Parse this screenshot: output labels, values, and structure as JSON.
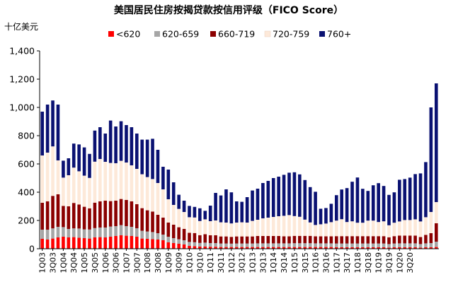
{
  "chart_data": {
    "type": "bar",
    "stacked": true,
    "title": "美国居民住房按揭贷款按信用评级（FICO Score）",
    "ylabel": "十亿美元",
    "ylim": [
      0,
      1400
    ],
    "yticks": [
      0,
      200,
      400,
      600,
      800,
      1000,
      1200,
      1400
    ],
    "ytick_labels": [
      "0",
      "200",
      "400",
      "600",
      "800",
      "1,000",
      "1,200",
      "1,400"
    ],
    "x_tick_labels": [
      "1Q03",
      "3Q03",
      "1Q04",
      "3Q04",
      "1Q05",
      "3Q05",
      "1Q06",
      "3Q06",
      "1Q07",
      "3Q07",
      "1Q08",
      "3Q08",
      "1Q09",
      "3Q09",
      "1Q10",
      "3Q10",
      "1Q11",
      "3Q11",
      "1Q12",
      "3Q12",
      "1Q13",
      "3Q13",
      "1Q14",
      "3Q14",
      "1Q15",
      "3Q15",
      "1Q16",
      "3Q16",
      "1Q17",
      "3Q17",
      "1Q18",
      "3Q18",
      "1Q19",
      "3Q19",
      "1Q20",
      "3Q20"
    ],
    "legend_position": "top",
    "grid": false,
    "series": [
      {
        "name": "<620",
        "color": "#ff0000",
        "values": [
          70,
          65,
          72,
          80,
          85,
          80,
          82,
          78,
          75,
          72,
          80,
          82,
          80,
          85,
          90,
          95,
          92,
          90,
          85,
          72,
          70,
          68,
          65,
          60,
          45,
          40,
          35,
          30,
          20,
          18,
          15,
          15,
          14,
          14,
          12,
          12,
          12,
          12,
          12,
          12,
          12,
          12,
          12,
          12,
          12,
          12,
          12,
          12,
          12,
          12,
          12,
          12,
          12,
          12,
          12,
          12,
          10,
          10,
          10,
          10,
          10,
          10,
          10,
          10,
          10,
          10,
          8,
          10,
          10,
          10,
          10,
          10,
          8,
          10,
          10,
          12
        ]
      },
      {
        "name": "620-659",
        "color": "#a6a6a6",
        "values": [
          65,
          70,
          72,
          75,
          68,
          60,
          62,
          65,
          62,
          64,
          66,
          68,
          70,
          72,
          70,
          72,
          68,
          65,
          60,
          55,
          52,
          50,
          45,
          40,
          40,
          35,
          32,
          30,
          28,
          28,
          26,
          28,
          26,
          26,
          25,
          25,
          24,
          25,
          25,
          25,
          25,
          26,
          26,
          26,
          26,
          26,
          26,
          26,
          27,
          27,
          27,
          27,
          26,
          26,
          26,
          26,
          27,
          27,
          27,
          27,
          27,
          27,
          27,
          27,
          27,
          27,
          25,
          27,
          28,
          28,
          28,
          28,
          25,
          28,
          30,
          38
        ]
      },
      {
        "name": "660-719",
        "color": "#8b0000",
        "values": [
          190,
          200,
          230,
          230,
          150,
          160,
          180,
          170,
          160,
          150,
          180,
          185,
          190,
          180,
          180,
          185,
          185,
          180,
          170,
          160,
          150,
          145,
          130,
          120,
          100,
          95,
          85,
          80,
          65,
          65,
          55,
          60,
          55,
          55,
          50,
          50,
          48,
          50,
          50,
          50,
          50,
          52,
          52,
          52,
          52,
          52,
          50,
          50,
          52,
          52,
          52,
          52,
          50,
          50,
          50,
          50,
          52,
          52,
          52,
          52,
          52,
          52,
          52,
          52,
          52,
          52,
          48,
          52,
          55,
          55,
          55,
          55,
          50,
          60,
          70,
          130
        ]
      },
      {
        "name": "720-759",
        "color": "#fde9d9",
        "values": [
          335,
          345,
          350,
          240,
          200,
          220,
          250,
          235,
          220,
          215,
          290,
          300,
          275,
          270,
          265,
          270,
          265,
          255,
          250,
          240,
          235,
          230,
          225,
          200,
          165,
          140,
          130,
          120,
          110,
          110,
          100,
          105,
          100,
          105,
          100,
          98,
          95,
          98,
          100,
          98,
          110,
          115,
          125,
          130,
          135,
          140,
          145,
          150,
          140,
          135,
          115,
          95,
          80,
          85,
          90,
          100,
          110,
          120,
          100,
          105,
          95,
          95,
          110,
          110,
          100,
          105,
          85,
          95,
          100,
          110,
          110,
          115,
          110,
          125,
          150,
          150
        ]
      },
      {
        "name": "760+",
        "color": "#0a1172",
        "values": [
          310,
          340,
          325,
          395,
          120,
          120,
          170,
          190,
          200,
          170,
          220,
          225,
          200,
          300,
          260,
          280,
          265,
          270,
          250,
          245,
          265,
          285,
          235,
          160,
          210,
          160,
          100,
          80,
          80,
          75,
          90,
          60,
          110,
          195,
          190,
          235,
          220,
          150,
          145,
          180,
          215,
          220,
          250,
          260,
          275,
          280,
          290,
          300,
          310,
          300,
          280,
          250,
          235,
          110,
          110,
          130,
          180,
          210,
          240,
          280,
          320,
          240,
          210,
          250,
          275,
          250,
          215,
          215,
          295,
          290,
          300,
          320,
          340,
          390,
          740,
          840
        ]
      }
    ]
  }
}
